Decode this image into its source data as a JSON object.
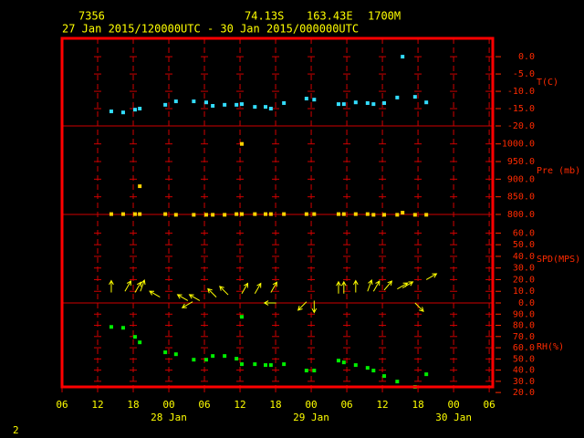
{
  "header": {
    "station": "7356",
    "lat": "74.13S",
    "lon": "163.43E",
    "elev": "1700M",
    "period": "27 Jan 2015/120000UTC - 30 Jan 2015/000000UTC"
  },
  "page_number": "2",
  "chart_data": [
    {
      "type": "scatter",
      "y_label": "T(C)",
      "color": "#33ddff",
      "xlim": [
        0,
        72.6
      ],
      "ylim": [
        -20,
        5.3
      ],
      "yticks": [
        {
          "value": 0,
          "label": "0.0"
        },
        {
          "value": -5,
          "label": "-5.0"
        },
        {
          "value": -10,
          "label": "-10.0"
        },
        {
          "value": -15,
          "label": "-15.0"
        },
        {
          "value": -20,
          "label": "-20.0"
        }
      ],
      "x": [
        8.3,
        10.3,
        12.3,
        13.1,
        17.4,
        19.2,
        22.2,
        24.3,
        25.4,
        27.4,
        29.4,
        30.3,
        32.5,
        34.3,
        35.2,
        37.4,
        41.2,
        42.5,
        46.6,
        47.5,
        49.5,
        51.5,
        52.5,
        54.3,
        56.5,
        57.4,
        59.5,
        61.4
      ],
      "values": [
        -15.8,
        -16.1,
        -15.3,
        -15.0,
        -13.9,
        -12.9,
        -12.9,
        -13.2,
        -14.2,
        -13.9,
        -13.9,
        -13.7,
        -14.5,
        -14.5,
        -15.0,
        -13.4,
        -12.1,
        -12.4,
        -13.7,
        -13.7,
        -13.2,
        -13.4,
        -13.7,
        -13.4,
        -11.8,
        0.0,
        -11.6,
        -13.2
      ]
    },
    {
      "type": "scatter",
      "y_label": "Pre (mb)",
      "color": "#ffd200",
      "xlim": [
        0,
        72.6
      ],
      "ylim": [
        800,
        1051
      ],
      "yticks": [
        {
          "value": 1000,
          "label": "1000.0"
        },
        {
          "value": 950,
          "label": "950.0"
        },
        {
          "value": 900,
          "label": "900.0"
        },
        {
          "value": 850,
          "label": "850.0"
        },
        {
          "value": 800,
          "label": "800.0"
        }
      ],
      "x": [
        8.3,
        10.3,
        12.3,
        13.1,
        13.1,
        17.4,
        19.2,
        22.2,
        24.3,
        25.4,
        27.4,
        29.4,
        30.3,
        30.3,
        32.5,
        34.3,
        35.2,
        37.4,
        41.2,
        42.5,
        46.6,
        47.5,
        49.5,
        51.5,
        52.5,
        54.3,
        56.5,
        57.4,
        59.5,
        61.4
      ],
      "values": [
        801,
        801,
        801,
        801,
        880,
        801,
        799,
        799,
        799,
        799,
        799,
        801,
        801,
        1000,
        801,
        801,
        801,
        801,
        801,
        801,
        801,
        801,
        801,
        801,
        799,
        799,
        799,
        805,
        799,
        799
      ]
    },
    {
      "type": "wind",
      "y_label": "SPD(MPS)",
      "color": "#ffff00",
      "xlim": [
        0,
        72.6
      ],
      "ylim": [
        0,
        76
      ],
      "yticks": [
        {
          "value": 60,
          "label": "60.0"
        },
        {
          "value": 50,
          "label": "50.0"
        },
        {
          "value": 40,
          "label": "40.0"
        },
        {
          "value": 30,
          "label": "30.0"
        },
        {
          "value": 20,
          "label": "20.0"
        },
        {
          "value": 10,
          "label": "10.0"
        },
        {
          "value": 0,
          "label": "0.0"
        }
      ],
      "x": [
        8.3,
        10.6,
        12.3,
        13.2,
        16.5,
        21.2,
        22.0,
        23.2,
        26.0,
        28.0,
        30.3,
        32.5,
        35.2,
        36.1,
        41.2,
        42.5,
        46.6,
        47.5,
        49.5,
        51.5,
        52.5,
        54.3,
        56.5,
        57.4,
        59.5,
        61.4
      ],
      "values": [
        9,
        10,
        9,
        10,
        5,
        2,
        1,
        2,
        5,
        7,
        8,
        8,
        9,
        0,
        1,
        2,
        8,
        8,
        9,
        10,
        10,
        11,
        12,
        13,
        0,
        20
      ],
      "directions": [
        0,
        30,
        30,
        20,
        300,
        300,
        240,
        300,
        315,
        315,
        30,
        30,
        30,
        270,
        225,
        180,
        0,
        0,
        0,
        20,
        30,
        40,
        60,
        60,
        135,
        60
      ]
    },
    {
      "type": "scatter",
      "y_label": "RH(%)",
      "color": "#00ee00",
      "xlim": [
        0,
        72.6
      ],
      "ylim": [
        25,
        100
      ],
      "yticks": [
        {
          "value": 90,
          "label": "90.0"
        },
        {
          "value": 80,
          "label": "80.0"
        },
        {
          "value": 70,
          "label": "70.0"
        },
        {
          "value": 60,
          "label": "60.0"
        },
        {
          "value": 50,
          "label": "50.0"
        },
        {
          "value": 40,
          "label": "40.0"
        },
        {
          "value": 30,
          "label": "30.0"
        },
        {
          "value": 20,
          "label": "20.0"
        }
      ],
      "x": [
        8.3,
        10.3,
        12.3,
        13.1,
        17.4,
        19.2,
        22.2,
        24.3,
        25.4,
        27.4,
        29.4,
        30.3,
        30.3,
        32.5,
        34.3,
        35.2,
        37.4,
        41.2,
        42.5,
        46.6,
        47.5,
        49.5,
        51.5,
        52.5,
        54.3,
        56.5,
        59.5,
        61.4
      ],
      "values": [
        78.6,
        77.8,
        69.7,
        64.8,
        55.9,
        54.2,
        49.3,
        49.3,
        52.6,
        52.6,
        50.2,
        87.6,
        45.3,
        45.3,
        44.5,
        44.5,
        45.3,
        39.6,
        39.6,
        48.5,
        46.9,
        44.5,
        42.0,
        39.6,
        34.7,
        29.8,
        25.0,
        36.3
      ],
      "xticks": [
        {
          "value": 0,
          "label": "06"
        },
        {
          "value": 6,
          "label": "12"
        },
        {
          "value": 12,
          "label": "18"
        },
        {
          "value": 18,
          "label": "00"
        },
        {
          "value": 24,
          "label": "06"
        },
        {
          "value": 30,
          "label": "12"
        },
        {
          "value": 36,
          "label": "18"
        },
        {
          "value": 42,
          "label": "00"
        },
        {
          "value": 48,
          "label": "06"
        },
        {
          "value": 54,
          "label": "12"
        },
        {
          "value": 60,
          "label": "18"
        },
        {
          "value": 66,
          "label": "00"
        },
        {
          "value": 72,
          "label": "06"
        }
      ],
      "day_labels": [
        {
          "value": 18,
          "label": "28 Jan"
        },
        {
          "value": 42,
          "label": "29 Jan"
        },
        {
          "value": 66,
          "label": "30 Jan"
        }
      ]
    }
  ]
}
